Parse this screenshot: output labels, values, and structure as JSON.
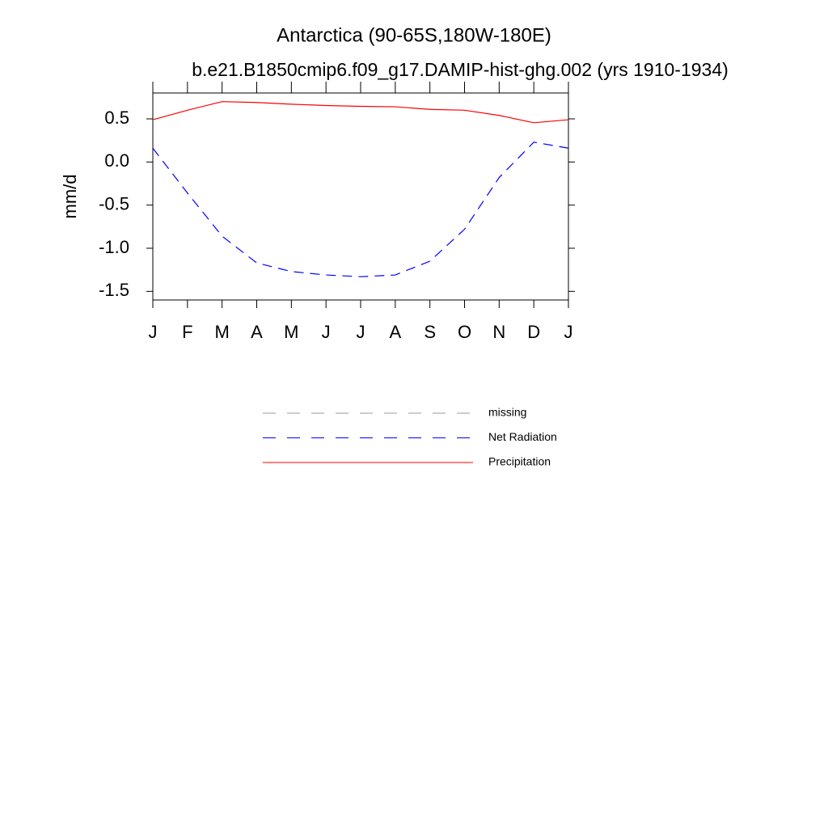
{
  "chart_data": {
    "type": "line",
    "title": "Antarctica (90-65S,180W-180E)",
    "subtitle": "b.e21.B1850cmip6.f09_g17.DAMIP-hist-ghg.002 (yrs 1910-1934)",
    "y_label": "mm/d",
    "categories": [
      "J",
      "F",
      "M",
      "A",
      "M",
      "J",
      "J",
      "A",
      "S",
      "O",
      "N",
      "D",
      "J"
    ],
    "series": [
      {
        "name": "missing",
        "color": "#999999",
        "dash": true,
        "values": [
          null,
          null,
          null,
          null,
          null,
          null,
          null,
          null,
          null,
          null,
          null,
          null,
          null
        ]
      },
      {
        "name": "Net Radiation",
        "color": "#0000ff",
        "dash": true,
        "values": [
          0.16,
          -0.36,
          -0.86,
          -1.17,
          -1.27,
          -1.31,
          -1.33,
          -1.31,
          -1.15,
          -0.78,
          -0.18,
          0.23,
          0.16
        ]
      },
      {
        "name": "Precipitation",
        "color": "#ff0000",
        "dash": false,
        "values": [
          0.49,
          0.6,
          0.7,
          0.69,
          0.67,
          0.655,
          0.645,
          0.64,
          0.61,
          0.6,
          0.54,
          0.455,
          0.49
        ]
      }
    ],
    "ylim": [
      -1.6,
      0.8
    ],
    "yticks": [
      0.5,
      {
        "value": 0,
        "label": "0.0"
      },
      -0.5,
      {
        "value": -1,
        "label": "-1.0"
      },
      -1.5
    ]
  }
}
